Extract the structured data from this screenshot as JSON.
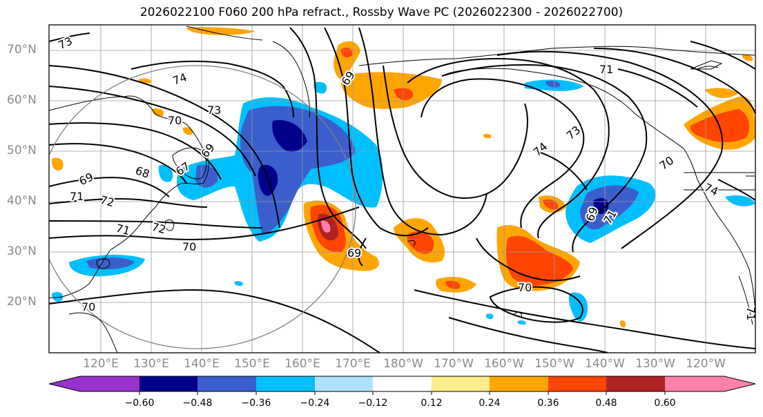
{
  "title": "2026022100 F060 200 hPa refract., Rossby Wave PC (2026022300 - 2026022700)",
  "lat_labels": [
    "70°N",
    "60°N",
    "50°N",
    "40°N",
    "30°N",
    "20°N"
  ],
  "lon_labels": [
    "120°E",
    "130°E",
    "140°E",
    "150°E",
    "160°E",
    "170°E",
    "180°W",
    "170°W",
    "160°W",
    "150°W",
    "140°W",
    "130°W",
    "120°W"
  ],
  "colorbar": {
    "ticks": [
      "−0.60",
      "−0.48",
      "−0.36",
      "−0.24",
      "−0.12",
      "0.12",
      "0.24",
      "0.36",
      "0.48",
      "0.60"
    ],
    "colors": [
      "#9932cc",
      "#00008b",
      "#3a5fcd",
      "#00bfff",
      "#b0e2ff",
      "#ffffff",
      "#ffec8b",
      "#ffa500",
      "#ff4500",
      "#b22222",
      "#ff82ab"
    ]
  },
  "contour_labels": [
    "73",
    "74",
    "73",
    "70",
    "69",
    "68",
    "67",
    "69",
    "71",
    "72",
    "71",
    "72",
    "70",
    "70",
    "69",
    "69",
    "71",
    "73",
    "74",
    "70",
    "69",
    "71",
    "70",
    "74",
    "71"
  ],
  "colors": {
    "land": "#000000",
    "grid": "#9a9a9a",
    "contour": "#000000",
    "circle": "#808080"
  }
}
